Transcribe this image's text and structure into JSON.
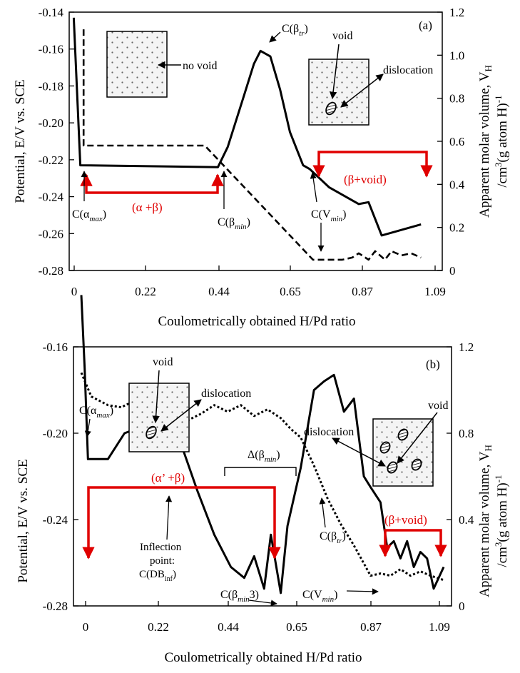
{
  "chart_data": [
    {
      "type": "line",
      "panel_label": "(a)",
      "xlabel": "Coulometrically obtained H/Pd ratio",
      "ylabel_left": "Potential, E/V vs. SCE",
      "ylabel_right": "Apparent molar volume, V_H /cm^3(g atom H)^-1",
      "ylabel_right_line1": "Apparent molar volume, V",
      "ylabel_right_sub": "H",
      "ylabel_right_line2_a": "/cm",
      "ylabel_right_line2_sup": "3",
      "ylabel_right_line2_b": "(g atom H)",
      "ylabel_right_line2_sup2": "-1",
      "x_ticks": [
        "0",
        "0.22",
        "0.44",
        "0.65",
        "0.87",
        "1.09"
      ],
      "y_left_ticks": [
        "-0.14",
        "-0.16",
        "-0.18",
        "-0.20",
        "-0.22",
        "-0.24",
        "-0.26",
        "-0.28"
      ],
      "y_right_ticks": [
        "1.2",
        "1.0",
        "0.8",
        "0.6",
        "0.4",
        "0.2",
        "0"
      ],
      "xlim": [
        0,
        1.09
      ],
      "ylim_left": [
        -0.28,
        -0.14
      ],
      "ylim_right": [
        0,
        1.2
      ],
      "grid": false,
      "series": [
        {
          "style": "solid",
          "axis": "left",
          "x": [
            0.0,
            0.02,
            0.44,
            0.47,
            0.52,
            0.55,
            0.57,
            0.6,
            0.63,
            0.66,
            0.7,
            0.72,
            0.78,
            0.83,
            0.87,
            0.9,
            0.94,
            1.06
          ],
          "y": [
            -0.143,
            -0.223,
            -0.224,
            -0.213,
            -0.185,
            -0.168,
            -0.161,
            -0.164,
            -0.182,
            -0.205,
            -0.223,
            -0.225,
            -0.235,
            -0.24,
            -0.244,
            -0.243,
            -0.261,
            -0.255
          ]
        },
        {
          "style": "dashed",
          "axis": "right",
          "x": [
            0.03,
            0.03,
            0.05,
            0.4,
            0.73,
            0.82,
            0.85,
            0.87,
            0.9,
            0.92,
            0.95,
            0.97,
            1.0,
            1.03,
            1.06
          ],
          "y": [
            1.12,
            0.58,
            0.58,
            0.58,
            0.05,
            0.05,
            0.06,
            0.08,
            0.05,
            0.09,
            0.05,
            0.09,
            0.07,
            0.08,
            0.06
          ]
        }
      ],
      "annotations": {
        "no_void": "no void",
        "void": "void",
        "dislocation": "dislocation",
        "c_alpha_max": "C(α",
        "c_alpha_max_sub": "max",
        "c_beta_min": "C(β",
        "c_beta_min_sub": "min",
        "c_beta_tr": "C(β",
        "c_beta_tr_sub": "tr",
        "c_vmin": "C(V",
        "c_vmin_sub": "min",
        "close_paren": ")",
        "alpha_beta": "(α  +β)",
        "beta_void": "(β+void)"
      }
    },
    {
      "type": "line",
      "panel_label": "(b)",
      "xlabel": "Coulometrically obtained H/Pd ratio",
      "ylabel_left": "Potential, E/V vs. SCE",
      "ylabel_right": "Apparent molar volume, V_H /cm^3(g atom H)^-1",
      "ylabel_right_line1": "Apparent molar volume, V",
      "ylabel_right_sub": "H",
      "ylabel_right_line2_a": "/cm",
      "ylabel_right_line2_sup": "3",
      "ylabel_right_line2_b": "(g atom H)",
      "ylabel_right_line2_sup2": "-1",
      "x_ticks": [
        "0",
        "0.22",
        "0.44",
        "0.65",
        "0.87",
        "1.09"
      ],
      "y_left_ticks": [
        "-0.16",
        "-0.20",
        "-0.24",
        "-0.28"
      ],
      "y_right_ticks": [
        "1.2",
        "0.8",
        "0.4",
        "0"
      ],
      "xlim": [
        0,
        1.09
      ],
      "ylim_left": [
        -0.28,
        -0.16
      ],
      "ylim_right": [
        0,
        1.2
      ],
      "grid": false,
      "series": [
        {
          "style": "solid",
          "axis": "left",
          "x": [
            0.0,
            0.01,
            0.02,
            0.08,
            0.13,
            0.2,
            0.26,
            0.3,
            0.35,
            0.4,
            0.45,
            0.49,
            0.52,
            0.55,
            0.57,
            0.6,
            0.62,
            0.66,
            0.7,
            0.73,
            0.76,
            0.79,
            0.82,
            0.85,
            0.87,
            0.9,
            0.92,
            0.94,
            0.96,
            0.98,
            1.0,
            1.02,
            1.04,
            1.06,
            1.09
          ],
          "y": [
            -0.136,
            -0.17,
            -0.212,
            -0.212,
            -0.2,
            -0.196,
            -0.19,
            -0.205,
            -0.227,
            -0.247,
            -0.262,
            -0.267,
            -0.257,
            -0.272,
            -0.247,
            -0.274,
            -0.243,
            -0.216,
            -0.18,
            -0.176,
            -0.173,
            -0.19,
            -0.184,
            -0.22,
            -0.225,
            -0.232,
            -0.253,
            -0.25,
            -0.258,
            -0.25,
            -0.262,
            -0.255,
            -0.258,
            -0.272,
            -0.262
          ]
        },
        {
          "style": "dotted",
          "axis": "right",
          "x": [
            0.0,
            0.03,
            0.08,
            0.12,
            0.16,
            0.2,
            0.24,
            0.28,
            0.32,
            0.36,
            0.4,
            0.44,
            0.48,
            0.52,
            0.56,
            0.6,
            0.63,
            0.66,
            0.7,
            0.74,
            0.78,
            0.82,
            0.87,
            0.9,
            0.93,
            0.96,
            0.99,
            1.02,
            1.05,
            1.09
          ],
          "y": [
            1.08,
            0.97,
            0.93,
            0.92,
            0.95,
            0.91,
            0.96,
            0.88,
            0.86,
            0.89,
            0.93,
            0.9,
            0.93,
            0.88,
            0.91,
            0.87,
            0.82,
            0.78,
            0.65,
            0.5,
            0.38,
            0.28,
            0.14,
            0.15,
            0.14,
            0.17,
            0.14,
            0.16,
            0.14,
            0.12
          ]
        }
      ],
      "annotations": {
        "void_left": "void",
        "dislocation_left": "dislocation",
        "void_right": "void",
        "dislocation_right": "dislocation",
        "c_alpha_max": "C(α",
        "c_alpha_max_sub": "max",
        "delta_beta_min": "Δ(β",
        "delta_beta_min_sub": "min",
        "alpha_prime_beta": "(α’  +β)",
        "beta_void": "(β+void)",
        "inflection_line1": "Inflection",
        "inflection_line2": "point:",
        "inflection_line3": "C(DB",
        "inflection_line3_sub": "inf",
        "c_beta_min3": "C(β",
        "c_beta_min3_sub": "min",
        "c_beta_min3_tail": "3)",
        "c_beta_tr": "C(β",
        "c_beta_tr_sub": "tr",
        "c_vmin": "C(V",
        "c_vmin_sub": "min",
        "close_paren": ")"
      }
    }
  ]
}
